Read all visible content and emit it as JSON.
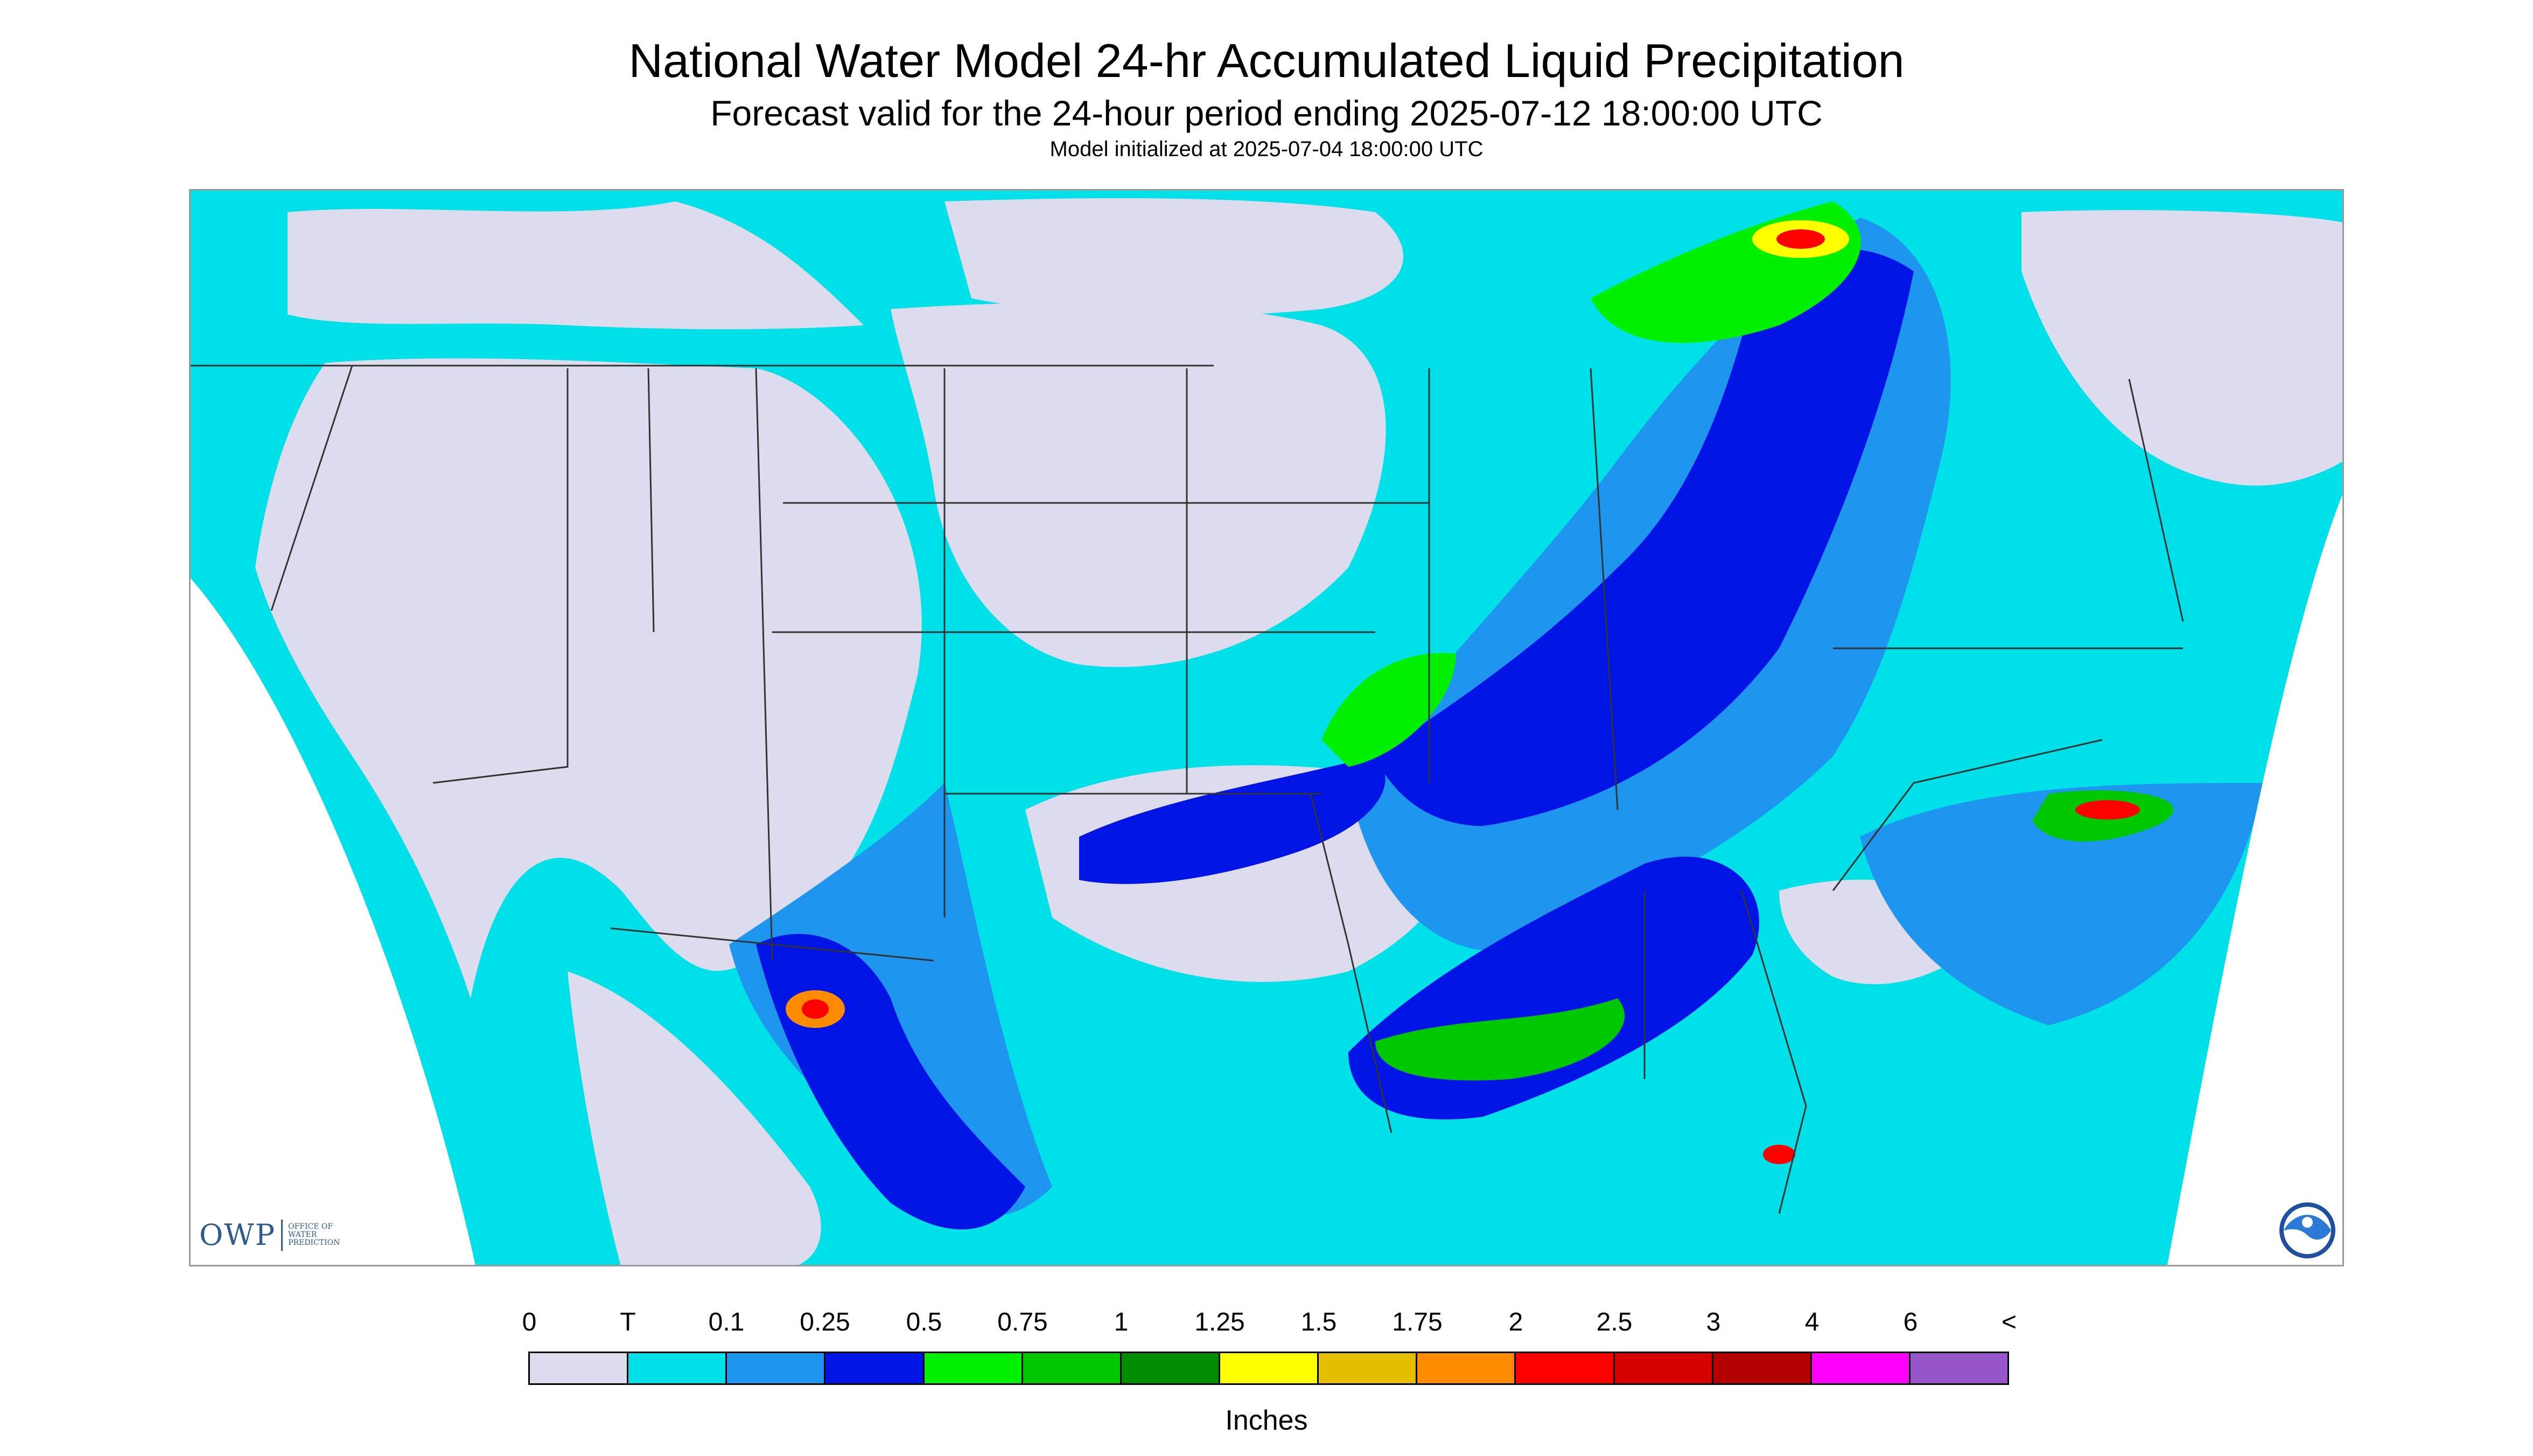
{
  "header": {
    "title": "National Water Model 24-hr Accumulated Liquid Precipitation",
    "subtitle": "Forecast valid for the 24-hour period ending 2025-07-12 18:00:00 UTC",
    "init_line": "Model initialized at 2025-07-04 18:00:00 UTC"
  },
  "logos": {
    "owp_mark": "OWP",
    "owp_text_lines": [
      "OFFICE OF",
      "WATER",
      "PREDICTION"
    ],
    "noaa_text": "NOAA"
  },
  "legend": {
    "labels": [
      "0",
      "T",
      "0.1",
      "0.25",
      "0.5",
      "0.75",
      "1",
      "1.25",
      "1.5",
      "1.75",
      "2",
      "2.5",
      "3",
      "4",
      "6",
      "<"
    ],
    "colors": [
      "#dcdcee",
      "#00e0e8",
      "#1e96f0",
      "#0014e6",
      "#00f000",
      "#00c800",
      "#008c00",
      "#ffff00",
      "#e6be00",
      "#ff8c00",
      "#ff0000",
      "#d70000",
      "#b40000",
      "#ff00ff",
      "#9955cc"
    ],
    "units": "Inches"
  },
  "map": {
    "colors": {
      "no_rain": "#dcdcee",
      "trace": "#00e0e8",
      "light": "#1e96f0",
      "moderate": "#0014e6",
      "green": "#00f000",
      "dark_green": "#00c800",
      "yellow": "#ffff00",
      "orange": "#ff8c00",
      "red": "#ff0000",
      "outside": "#ffffff",
      "borders": "#333333"
    }
  }
}
